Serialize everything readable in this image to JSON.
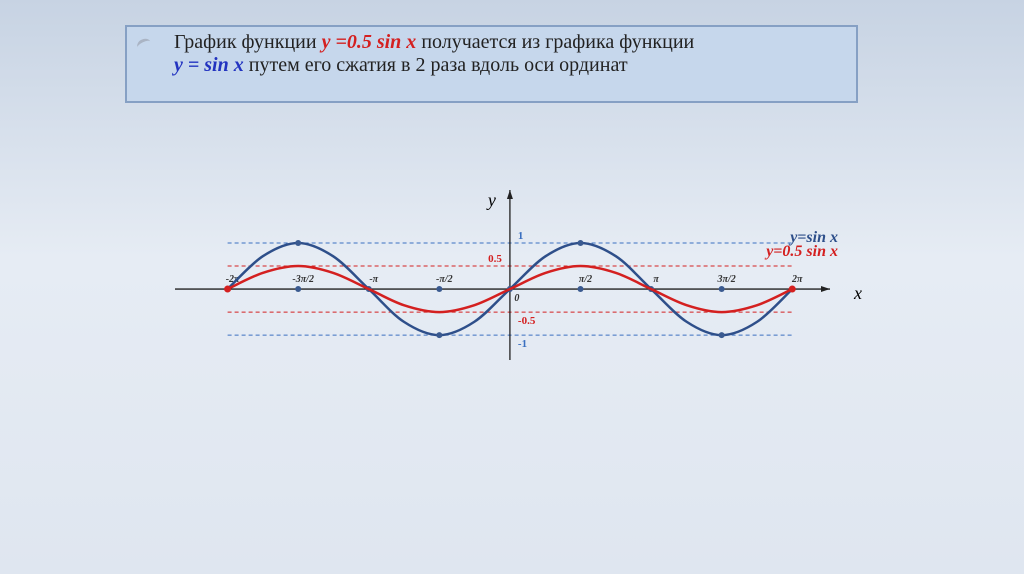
{
  "header": {
    "lines": [
      [
        {
          "text": "График функции ",
          "color": "#222222",
          "emphasis": false
        },
        {
          "text": "y =0.5 sin x",
          "color": "#d42020",
          "emphasis": true
        },
        {
          "text": " получается из графика функции",
          "color": "#222222",
          "emphasis": false
        }
      ],
      [
        {
          "text": "y = sin x",
          "color": "#2233c0",
          "emphasis": true
        },
        {
          "text": " путем его сжатия в 2 раза вдоль оси ординат",
          "color": "#222222",
          "emphasis": false
        }
      ]
    ]
  },
  "chart_data": {
    "type": "line",
    "x_label": "x",
    "y_label": "y",
    "x": [
      -6.28,
      -5.5,
      -4.71,
      -3.93,
      -3.14,
      -2.36,
      -1.57,
      -0.79,
      0,
      0.79,
      1.57,
      2.36,
      3.14,
      3.93,
      4.71,
      5.5,
      6.28
    ],
    "series": [
      {
        "name": "y=sin x",
        "color": "#2e4f8a",
        "values": [
          0,
          0.71,
          1,
          0.71,
          0,
          -0.71,
          -1,
          -0.71,
          0,
          0.71,
          1,
          0.71,
          0,
          -0.71,
          -1,
          -0.71,
          0
        ]
      },
      {
        "name": "y=0.5 sin x",
        "color": "#d42020",
        "values": [
          0,
          0.35,
          0.5,
          0.35,
          0,
          -0.35,
          -0.5,
          -0.35,
          0,
          0.35,
          0.5,
          0.35,
          0,
          -0.35,
          -0.5,
          -0.35,
          0
        ]
      }
    ],
    "xlim": [
      -7.45,
      7.12
    ],
    "ylim": [
      -1.54,
      2.15
    ],
    "xticks": [
      {
        "value": -6.28,
        "label": "-2π"
      },
      {
        "value": -4.71,
        "label": "-3π/2"
      },
      {
        "value": -3.14,
        "label": "-π"
      },
      {
        "value": -1.57,
        "label": "-π/2"
      },
      0,
      {
        "value": 1.57,
        "label": "π/2"
      },
      {
        "value": 3.14,
        "label": "π"
      },
      {
        "value": 4.71,
        "label": "3π/2"
      },
      {
        "value": 6.28,
        "label": "2π"
      }
    ],
    "yticks": [
      1,
      0.5,
      -0.5,
      -1
    ],
    "grid": true,
    "grid_colors": [
      "#3a6fc0",
      "#d42020",
      "#d42020",
      "#3a6fc0"
    ]
  }
}
